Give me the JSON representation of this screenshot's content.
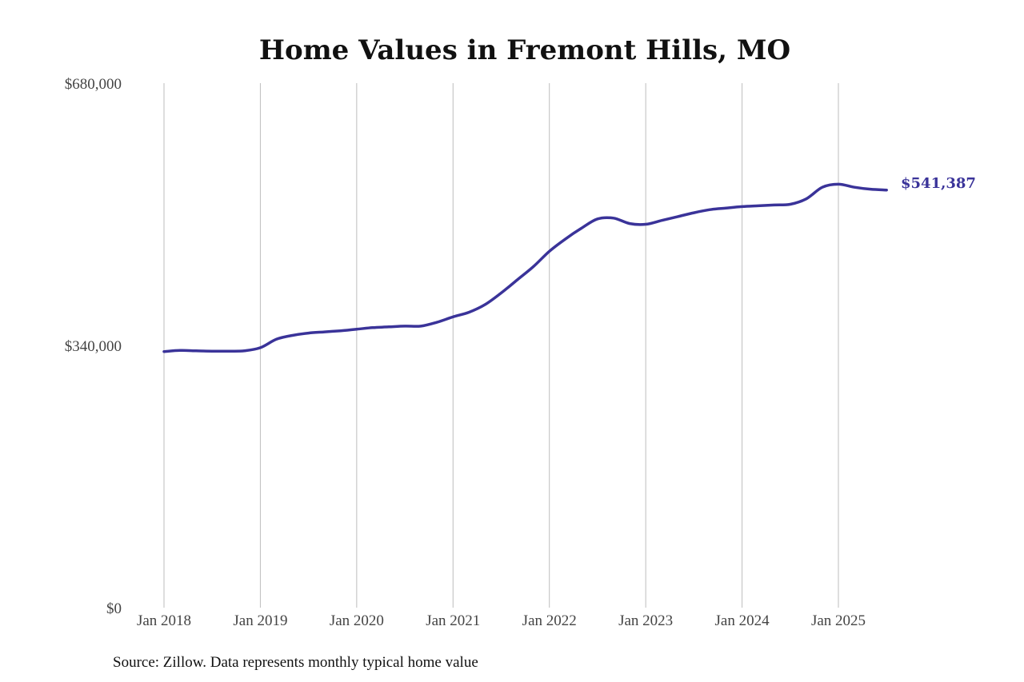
{
  "chart_data": {
    "type": "line",
    "title": "Home Values in Fremont Hills, MO",
    "xlabel": "",
    "ylabel": "",
    "ylim": [
      0,
      680000
    ],
    "y_ticks": [
      {
        "value": 0,
        "label": "$0"
      },
      {
        "value": 340000,
        "label": "$340,000"
      },
      {
        "value": 680000,
        "label": "$680,000"
      }
    ],
    "x_ticks": [
      {
        "value": "2018-01",
        "label": "Jan 2018"
      },
      {
        "value": "2019-01",
        "label": "Jan 2019"
      },
      {
        "value": "2020-01",
        "label": "Jan 2020"
      },
      {
        "value": "2021-01",
        "label": "Jan 2021"
      },
      {
        "value": "2022-01",
        "label": "Jan 2022"
      },
      {
        "value": "2023-01",
        "label": "Jan 2023"
      },
      {
        "value": "2024-01",
        "label": "Jan 2024"
      },
      {
        "value": "2025-01",
        "label": "Jan 2025"
      }
    ],
    "grid": "vertical",
    "line_color": "#3a3399",
    "series": [
      {
        "x": [
          "2018-01",
          "2018-03",
          "2018-05",
          "2018-07",
          "2018-09",
          "2018-11",
          "2019-01",
          "2019-03",
          "2019-05",
          "2019-07",
          "2019-09",
          "2019-11",
          "2020-01",
          "2020-03",
          "2020-05",
          "2020-07",
          "2020-09",
          "2020-11",
          "2021-01",
          "2021-03",
          "2021-05",
          "2021-07",
          "2021-09",
          "2021-11",
          "2022-01",
          "2022-03",
          "2022-05",
          "2022-07",
          "2022-09",
          "2022-11",
          "2023-01",
          "2023-03",
          "2023-05",
          "2023-07",
          "2023-09",
          "2023-11",
          "2024-01",
          "2024-03",
          "2024-05",
          "2024-07",
          "2024-09",
          "2024-11",
          "2025-01",
          "2025-03",
          "2025-05",
          "2025-07"
        ],
        "y": [
          332000,
          333500,
          333000,
          332500,
          332500,
          333000,
          337000,
          348000,
          353000,
          356000,
          357500,
          359000,
          361000,
          363000,
          364000,
          365000,
          365000,
          370000,
          377000,
          383000,
          393000,
          408000,
          425000,
          442000,
          462000,
          478000,
          492000,
          504000,
          505000,
          498000,
          497000,
          502000,
          507000,
          512000,
          516000,
          518000,
          520000,
          521000,
          522000,
          523000,
          530000,
          545000,
          549000,
          545000,
          542500,
          541387
        ]
      }
    ],
    "end_label": "$541,387",
    "source": "Source: Zillow. Data represents monthly typical home value"
  }
}
